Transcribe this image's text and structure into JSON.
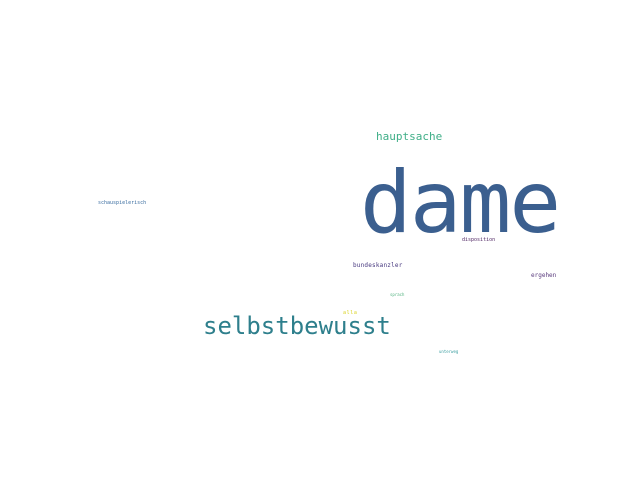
{
  "words": {
    "dame": {
      "text": "dame",
      "color": "#3b5f8f"
    },
    "selbstbewusst": {
      "text": "selbstbewusst",
      "color": "#2e7f8c"
    },
    "hauptsache": {
      "text": "hauptsache",
      "color": "#3fae87"
    },
    "schauspielerisch": {
      "text": "schauspielerisch",
      "color": "#3a6da0"
    },
    "bundeskanzler": {
      "text": "bundeskanzler",
      "color": "#46377e"
    },
    "ergehen": {
      "text": "ergehen",
      "color": "#5a3b7d"
    },
    "disposition": {
      "text": "disposition",
      "color": "#4a1f5e"
    },
    "sprach": {
      "text": "sprach",
      "color": "#51b27f"
    },
    "alla": {
      "text": "alla",
      "color": "#d9d21f"
    },
    "unterweg": {
      "text": "unterweg",
      "color": "#3a9ea0"
    }
  }
}
